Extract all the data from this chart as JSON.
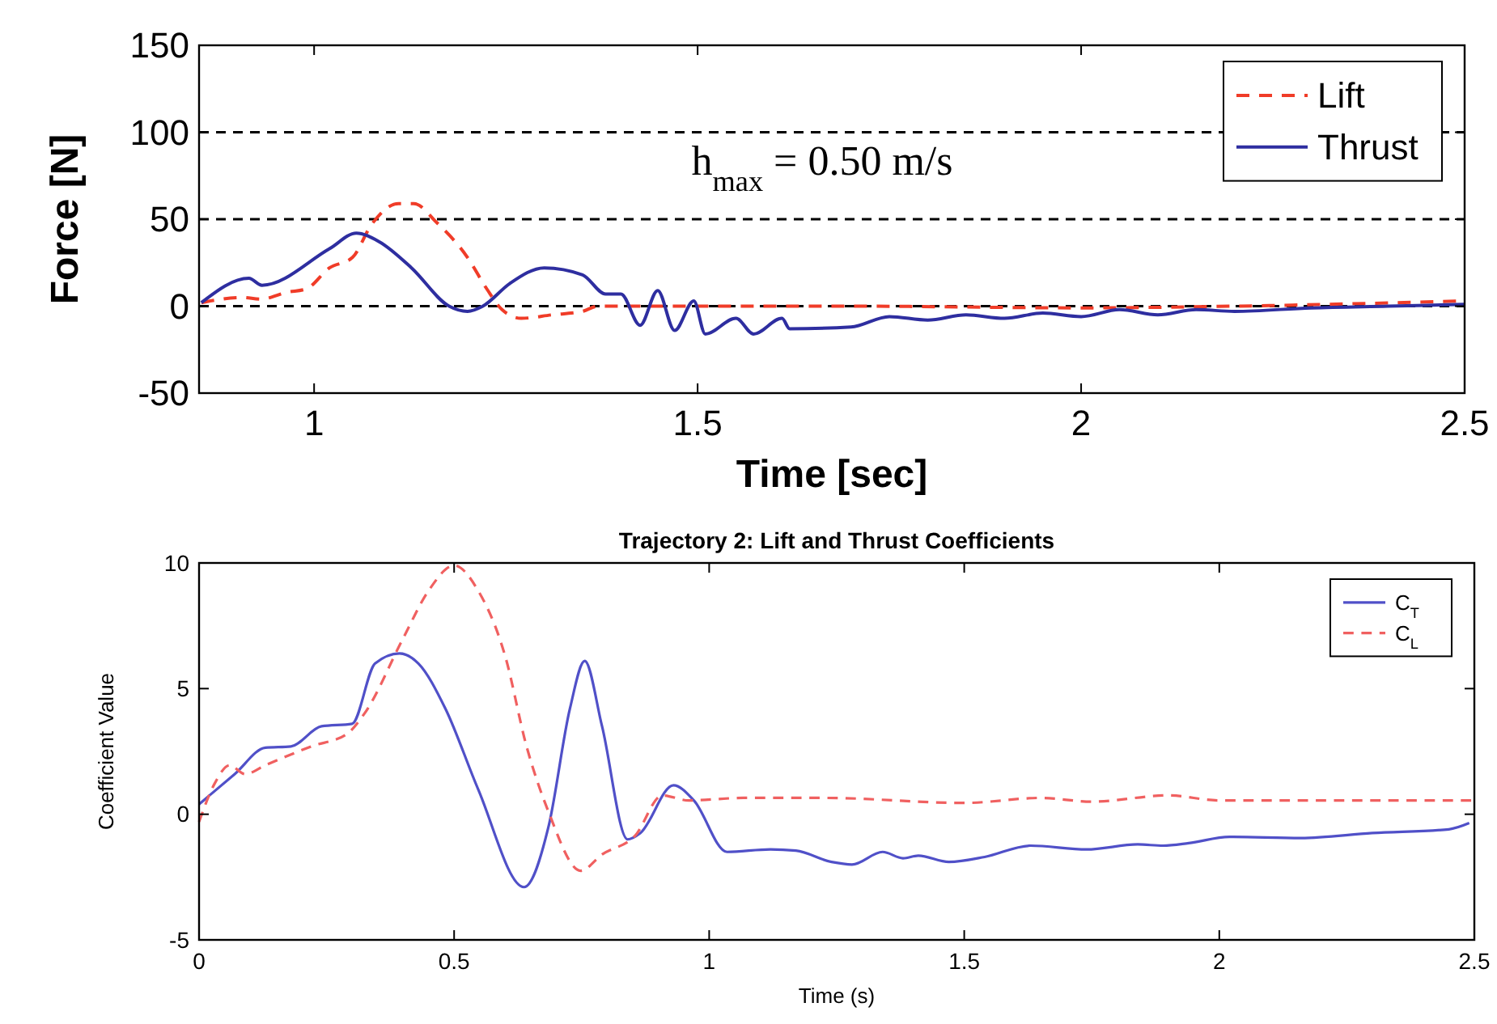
{
  "chart_data": [
    {
      "type": "line",
      "xlabel": "Time [sec]",
      "ylabel": "Force [N]",
      "xlim": [
        0.85,
        2.5
      ],
      "ylim": [
        -50,
        150
      ],
      "xticks": [
        1,
        1.5,
        2,
        2.5
      ],
      "yticks": [
        -50,
        0,
        50,
        100,
        150
      ],
      "legend": "top right",
      "grid": false,
      "ref_lines": [
        {
          "axis": "y",
          "value": 0,
          "color": "#000000",
          "line_style": "dashed"
        },
        {
          "axis": "y",
          "value": 50,
          "color": "#000000",
          "line_style": "dashed"
        },
        {
          "axis": "y",
          "value": 100,
          "color": "#000000",
          "line_style": "dashed"
        }
      ],
      "annotations": [
        "h$_{max}$ = 0.50 m/s"
      ],
      "series": [
        {
          "name": "Lift",
          "color": "#f03c28",
          "line_style": "dashed",
          "x": [
            0.853,
            0.907,
            0.93,
            0.965,
            0.99,
            1.02,
            1.05,
            1.075,
            1.11,
            1.13,
            1.16,
            1.2,
            1.225,
            1.245,
            1.27,
            1.31,
            1.35,
            1.37,
            1.5,
            1.7,
            2.0,
            2.2,
            2.5
          ],
          "values": [
            2,
            5,
            4,
            8,
            10,
            22,
            28,
            47,
            59,
            59,
            48,
            28,
            10,
            -2,
            -7,
            -5,
            -3,
            0,
            0,
            0,
            -1,
            0,
            3
          ]
        },
        {
          "name": "Thrust",
          "color": "#2e2ea0",
          "line_style": "solid",
          "x": [
            0.853,
            0.915,
            0.932,
            1.02,
            1.055,
            1.085,
            1.127,
            1.176,
            1.2,
            1.22,
            1.255,
            1.3,
            1.35,
            1.38,
            1.4,
            1.425,
            1.448,
            1.47,
            1.495,
            1.51,
            1.55,
            1.573,
            1.61,
            1.62,
            1.7,
            1.75,
            1.8,
            1.85,
            1.9,
            1.95,
            2.0,
            2.05,
            2.1,
            2.15,
            2.2,
            2.3,
            2.4,
            2.5
          ],
          "values": [
            2,
            16,
            12,
            33,
            42,
            37,
            22,
            0,
            -3,
            0,
            13,
            22,
            18,
            7,
            7,
            -11,
            9,
            -14,
            3,
            -16,
            -7,
            -16,
            -7,
            -13,
            -12,
            -6,
            -8,
            -5,
            -7,
            -4,
            -6,
            -2,
            -5,
            -2,
            -3,
            -1,
            0,
            1
          ]
        }
      ]
    },
    {
      "type": "line",
      "title": "Trajectory 2: Lift and Thrust Coefficients",
      "xlabel": "Time (s)",
      "ylabel": "Coefficient Value",
      "xlim": [
        0,
        2.5
      ],
      "ylim": [
        -5,
        10
      ],
      "xticks": [
        0,
        0.5,
        1,
        1.5,
        2,
        2.5
      ],
      "yticks": [
        -5,
        0,
        5,
        10
      ],
      "legend": "top right",
      "grid": false,
      "series": [
        {
          "name": "C$_{T}$",
          "color": "#5050c8",
          "line_style": "solid",
          "x": [
            0,
            0.07,
            0.13,
            0.18,
            0.24,
            0.3,
            0.345,
            0.393,
            0.43,
            0.483,
            0.547,
            0.637,
            0.685,
            0.727,
            0.756,
            0.79,
            0.84,
            0.865,
            0.93,
            0.97,
            1.035,
            1.12,
            1.17,
            1.24,
            1.28,
            1.34,
            1.38,
            1.41,
            1.47,
            1.54,
            1.63,
            1.74,
            1.84,
            1.89,
            1.94,
            2.02,
            2.16,
            2.3,
            2.45,
            2.49
          ],
          "values": [
            0.4,
            1.6,
            2.65,
            2.7,
            3.5,
            3.6,
            6.0,
            6.4,
            6.0,
            4.2,
            1.0,
            -2.9,
            -0.5,
            4.2,
            6.1,
            3.5,
            -1.0,
            -0.75,
            1.15,
            0.55,
            -1.5,
            -1.4,
            -1.45,
            -1.9,
            -2.0,
            -1.5,
            -1.75,
            -1.65,
            -1.9,
            -1.7,
            -1.25,
            -1.4,
            -1.2,
            -1.25,
            -1.15,
            -0.9,
            -0.95,
            -0.75,
            -0.6,
            -0.35
          ]
        },
        {
          "name": "C$_{L}$",
          "color": "#f06060",
          "line_style": "dashed",
          "x": [
            0,
            0.03,
            0.06,
            0.09,
            0.13,
            0.22,
            0.29,
            0.324,
            0.4,
            0.45,
            0.5,
            0.547,
            0.6,
            0.642,
            0.685,
            0.748,
            0.79,
            0.855,
            0.908,
            0.96,
            1.067,
            1.226,
            1.5,
            1.65,
            1.75,
            1.9,
            2.0,
            2.5
          ],
          "values": [
            -0.3,
            1.2,
            1.95,
            1.6,
            1.95,
            2.7,
            3.2,
            4.0,
            7.0,
            8.9,
            9.9,
            8.9,
            6.3,
            2.7,
            0.1,
            -2.25,
            -1.6,
            -0.85,
            0.75,
            0.55,
            0.65,
            0.65,
            0.45,
            0.65,
            0.5,
            0.75,
            0.55,
            0.55
          ]
        }
      ]
    }
  ]
}
